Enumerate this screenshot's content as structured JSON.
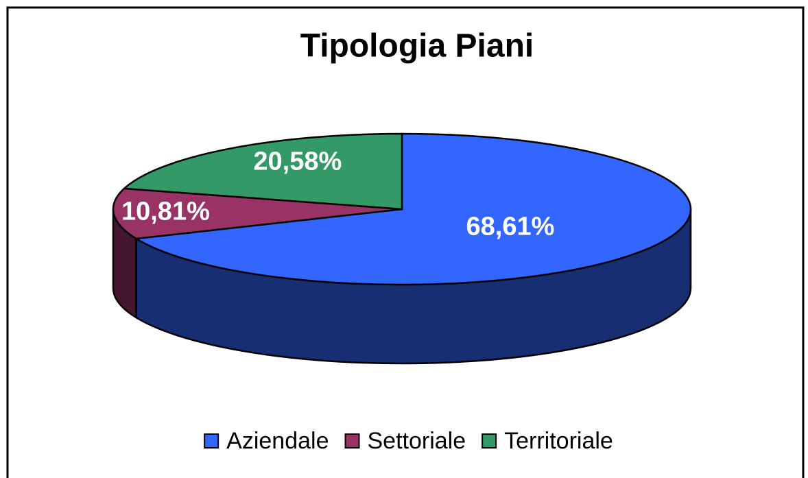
{
  "chart_data": {
    "type": "pie",
    "title": "Tipologia Piani",
    "categories": [
      "Aziendale",
      "Settoriale",
      "Territoriale"
    ],
    "values": [
      68.61,
      10.81,
      20.58
    ],
    "value_labels": [
      "68,61%",
      "10,81%",
      "20,58%"
    ],
    "colors": [
      "#3366ff",
      "#993366",
      "#339966"
    ],
    "legend": "bottom"
  }
}
